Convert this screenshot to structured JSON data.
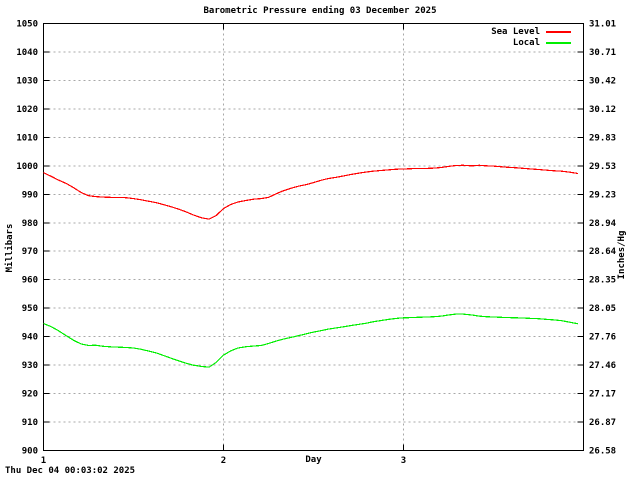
{
  "footer": {
    "timestamp": "Thu Dec 04 00:03:02 2025"
  },
  "chart_data": {
    "type": "line",
    "title": "Barometric Pressure ending 03 December 2025",
    "xlabel": "Day",
    "ylabel_left": "Millibars",
    "ylabel_right": "Inches/Hg",
    "xlim": [
      1,
      4
    ],
    "ylim_left": [
      900,
      1050
    ],
    "ylim_right": [
      26.58,
      31.01
    ],
    "x_ticks": [
      1,
      2,
      3
    ],
    "y_ticks_left": [
      900,
      910,
      920,
      930,
      940,
      950,
      960,
      970,
      980,
      990,
      1000,
      1010,
      1020,
      1030,
      1040,
      1050
    ],
    "y_ticks_right": [
      "26.58",
      "26.87",
      "27.17",
      "27.46",
      "27.76",
      "28.05",
      "28.35",
      "28.64",
      "28.94",
      "29.23",
      "29.53",
      "29.83",
      "30.12",
      "30.42",
      "30.71",
      "31.01"
    ],
    "grid": true,
    "legend_position": "top-right-inside",
    "colors": {
      "grid": "#a8a8a8",
      "frame": "#000000",
      "background": "#ffffff"
    },
    "series": [
      {
        "name": "Sea Level",
        "color": "#ff0000",
        "points": [
          [
            1.0,
            997.6
          ],
          [
            1.04,
            996.4
          ],
          [
            1.08,
            995.1
          ],
          [
            1.13,
            993.7
          ],
          [
            1.17,
            992.2
          ],
          [
            1.21,
            990.6
          ],
          [
            1.25,
            989.5
          ],
          [
            1.29,
            989.2
          ],
          [
            1.33,
            989.0
          ],
          [
            1.38,
            988.9
          ],
          [
            1.42,
            988.9
          ],
          [
            1.46,
            988.8
          ],
          [
            1.5,
            988.5
          ],
          [
            1.54,
            988.1
          ],
          [
            1.58,
            987.6
          ],
          [
            1.63,
            987.0
          ],
          [
            1.67,
            986.3
          ],
          [
            1.71,
            985.6
          ],
          [
            1.75,
            984.8
          ],
          [
            1.79,
            983.9
          ],
          [
            1.83,
            982.8
          ],
          [
            1.88,
            981.7
          ],
          [
            1.92,
            981.3
          ],
          [
            1.96,
            982.6
          ],
          [
            2.0,
            985.0
          ],
          [
            2.04,
            986.4
          ],
          [
            2.08,
            987.3
          ],
          [
            2.13,
            987.9
          ],
          [
            2.17,
            988.3
          ],
          [
            2.21,
            988.5
          ],
          [
            2.25,
            988.9
          ],
          [
            2.29,
            990.1
          ],
          [
            2.33,
            991.2
          ],
          [
            2.38,
            992.2
          ],
          [
            2.42,
            992.9
          ],
          [
            2.46,
            993.4
          ],
          [
            2.5,
            994.1
          ],
          [
            2.54,
            994.9
          ],
          [
            2.58,
            995.5
          ],
          [
            2.63,
            996.0
          ],
          [
            2.67,
            996.5
          ],
          [
            2.71,
            997.0
          ],
          [
            2.75,
            997.4
          ],
          [
            2.79,
            997.8
          ],
          [
            2.83,
            998.1
          ],
          [
            2.88,
            998.4
          ],
          [
            2.92,
            998.6
          ],
          [
            2.96,
            998.8
          ],
          [
            3.0,
            998.9
          ],
          [
            3.04,
            999.0
          ],
          [
            3.08,
            999.1
          ],
          [
            3.13,
            999.1
          ],
          [
            3.17,
            999.2
          ],
          [
            3.21,
            999.4
          ],
          [
            3.25,
            999.8
          ],
          [
            3.29,
            1000.1
          ],
          [
            3.33,
            1000.2
          ],
          [
            3.38,
            1000.0
          ],
          [
            3.42,
            1000.2
          ],
          [
            3.46,
            1000.0
          ],
          [
            3.5,
            999.9
          ],
          [
            3.54,
            999.7
          ],
          [
            3.58,
            999.5
          ],
          [
            3.63,
            999.3
          ],
          [
            3.67,
            999.1
          ],
          [
            3.71,
            998.9
          ],
          [
            3.75,
            998.7
          ],
          [
            3.79,
            998.5
          ],
          [
            3.83,
            998.3
          ],
          [
            3.88,
            998.1
          ],
          [
            3.92,
            997.8
          ],
          [
            3.97,
            997.3
          ]
        ]
      },
      {
        "name": "Local",
        "color": "#00ee00",
        "points": [
          [
            1.0,
            944.6
          ],
          [
            1.04,
            943.6
          ],
          [
            1.08,
            942.2
          ],
          [
            1.13,
            940.2
          ],
          [
            1.17,
            938.6
          ],
          [
            1.21,
            937.4
          ],
          [
            1.25,
            936.9
          ],
          [
            1.29,
            937.0
          ],
          [
            1.33,
            936.6
          ],
          [
            1.38,
            936.4
          ],
          [
            1.42,
            936.3
          ],
          [
            1.46,
            936.2
          ],
          [
            1.5,
            936.0
          ],
          [
            1.54,
            935.6
          ],
          [
            1.58,
            935.0
          ],
          [
            1.63,
            934.2
          ],
          [
            1.67,
            933.3
          ],
          [
            1.71,
            932.4
          ],
          [
            1.75,
            931.5
          ],
          [
            1.79,
            930.7
          ],
          [
            1.83,
            930.0
          ],
          [
            1.88,
            929.5
          ],
          [
            1.92,
            929.3
          ],
          [
            1.96,
            931.0
          ],
          [
            2.0,
            933.5
          ],
          [
            2.04,
            935.0
          ],
          [
            2.08,
            936.0
          ],
          [
            2.13,
            936.5
          ],
          [
            2.17,
            936.7
          ],
          [
            2.21,
            936.9
          ],
          [
            2.25,
            937.6
          ],
          [
            2.29,
            938.4
          ],
          [
            2.33,
            939.1
          ],
          [
            2.38,
            939.8
          ],
          [
            2.42,
            940.4
          ],
          [
            2.46,
            941.0
          ],
          [
            2.5,
            941.6
          ],
          [
            2.54,
            942.1
          ],
          [
            2.58,
            942.6
          ],
          [
            2.63,
            943.1
          ],
          [
            2.67,
            943.5
          ],
          [
            2.71,
            943.9
          ],
          [
            2.75,
            944.3
          ],
          [
            2.79,
            944.7
          ],
          [
            2.83,
            945.2
          ],
          [
            2.88,
            945.7
          ],
          [
            2.92,
            946.1
          ],
          [
            2.96,
            946.4
          ],
          [
            3.0,
            946.6
          ],
          [
            3.04,
            946.7
          ],
          [
            3.08,
            946.8
          ],
          [
            3.13,
            946.9
          ],
          [
            3.17,
            947.0
          ],
          [
            3.21,
            947.2
          ],
          [
            3.25,
            947.6
          ],
          [
            3.29,
            947.9
          ],
          [
            3.33,
            947.9
          ],
          [
            3.38,
            947.6
          ],
          [
            3.42,
            947.2
          ],
          [
            3.46,
            947.0
          ],
          [
            3.5,
            946.9
          ],
          [
            3.54,
            946.8
          ],
          [
            3.58,
            946.7
          ],
          [
            3.63,
            946.6
          ],
          [
            3.67,
            946.5
          ],
          [
            3.71,
            946.4
          ],
          [
            3.75,
            946.3
          ],
          [
            3.79,
            946.1
          ],
          [
            3.83,
            945.9
          ],
          [
            3.88,
            945.6
          ],
          [
            3.92,
            945.1
          ],
          [
            3.97,
            944.5
          ]
        ]
      }
    ]
  }
}
